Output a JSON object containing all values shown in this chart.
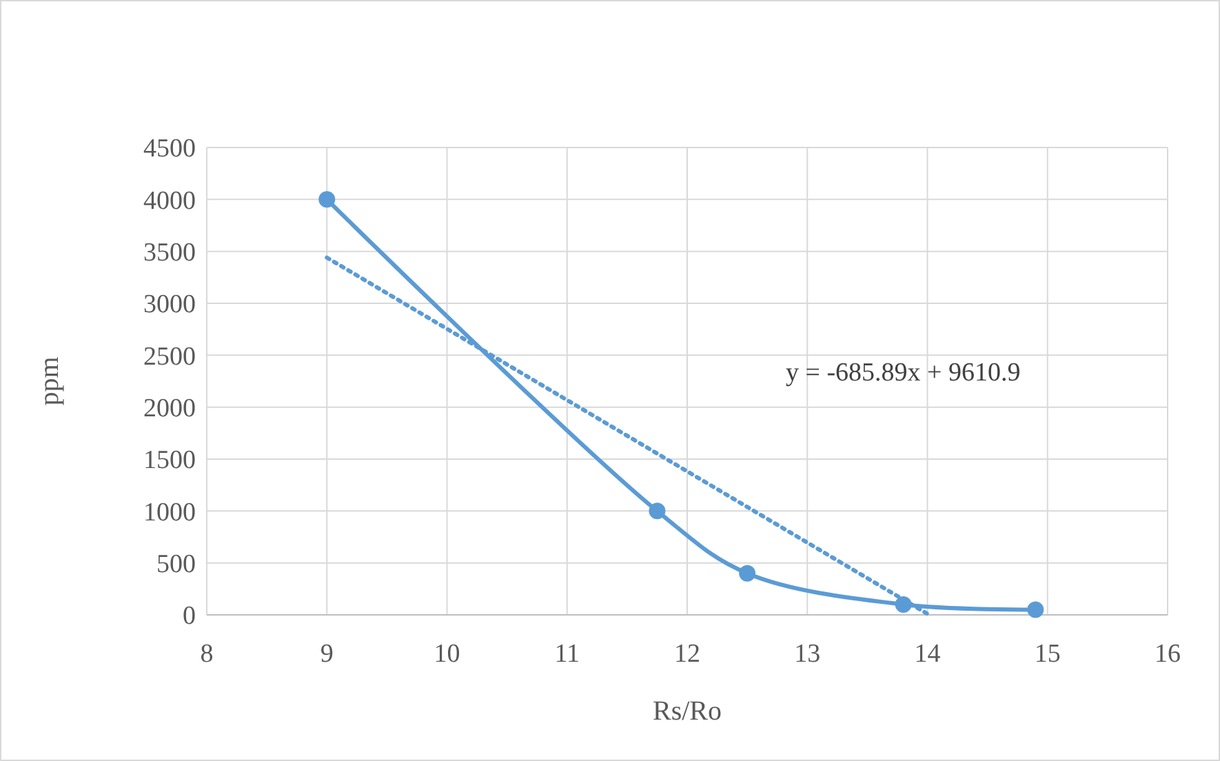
{
  "chart_data": {
    "type": "line",
    "xlabel": "Rs/Ro",
    "ylabel": "ppm",
    "series": [
      {
        "color": "#5b9bd5",
        "x": [
          9,
          11.75,
          12.5,
          13.8,
          14.9
        ],
        "values": [
          4000,
          1000,
          400,
          100,
          50
        ],
        "marker": "circle",
        "line_style": "solid"
      },
      {
        "type": "line",
        "color": "#5b9bd5",
        "x": [
          9,
          14
        ],
        "values": [
          3440,
          10
        ],
        "marker": "none",
        "line_style": "dotted"
      }
    ],
    "xlim": [
      8,
      16
    ],
    "xticks": [
      8,
      9,
      10,
      11,
      12,
      13,
      14,
      15,
      16
    ],
    "ylim": [
      0,
      4500
    ],
    "yticks": [
      0,
      500,
      1000,
      1500,
      2000,
      2500,
      3000,
      3500,
      4000,
      4500
    ],
    "grid": true,
    "annotations": [
      "y = -685.89x + 9610.9"
    ]
  }
}
